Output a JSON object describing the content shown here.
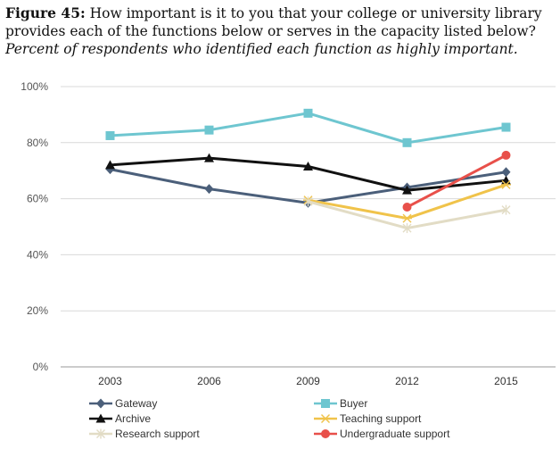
{
  "caption": {
    "figure_label": "Figure 45:",
    "question": "How important is it to you that your college or university library provides each of the functions below or serves in the capacity listed below?",
    "subtitle": "Percent of respondents who identified each function as highly important."
  },
  "chart_data": {
    "type": "line",
    "x": [
      "2003",
      "2006",
      "2009",
      "2012",
      "2015"
    ],
    "ylim": [
      0,
      100
    ],
    "yticks": [
      0,
      20,
      40,
      60,
      80,
      100
    ],
    "ytick_labels": [
      "0%",
      "20%",
      "40%",
      "60%",
      "80%",
      "100%"
    ],
    "grid": true,
    "legend_position": "bottom",
    "series": [
      {
        "name": "Gateway",
        "color": "#4b5f7a",
        "marker": "diamond",
        "values": [
          70.5,
          63.5,
          58.5,
          64,
          69.5
        ]
      },
      {
        "name": "Buyer",
        "color": "#6ec6d0",
        "marker": "square",
        "values": [
          82.5,
          84.5,
          90.5,
          80,
          85.5
        ]
      },
      {
        "name": "Archive",
        "color": "#111111",
        "marker": "triangle",
        "values": [
          72,
          74.5,
          71.5,
          63,
          66.5
        ]
      },
      {
        "name": "Teaching support",
        "color": "#f0c34a",
        "marker": "star",
        "values": [
          null,
          null,
          59.5,
          53,
          65
        ]
      },
      {
        "name": "Research support",
        "color": "#e2dcc5",
        "marker": "asterisk",
        "values": [
          null,
          null,
          59,
          49.5,
          56
        ]
      },
      {
        "name": "Undergraduate support",
        "color": "#e8504a",
        "marker": "circle",
        "values": [
          null,
          null,
          null,
          57,
          75.5
        ]
      }
    ]
  }
}
